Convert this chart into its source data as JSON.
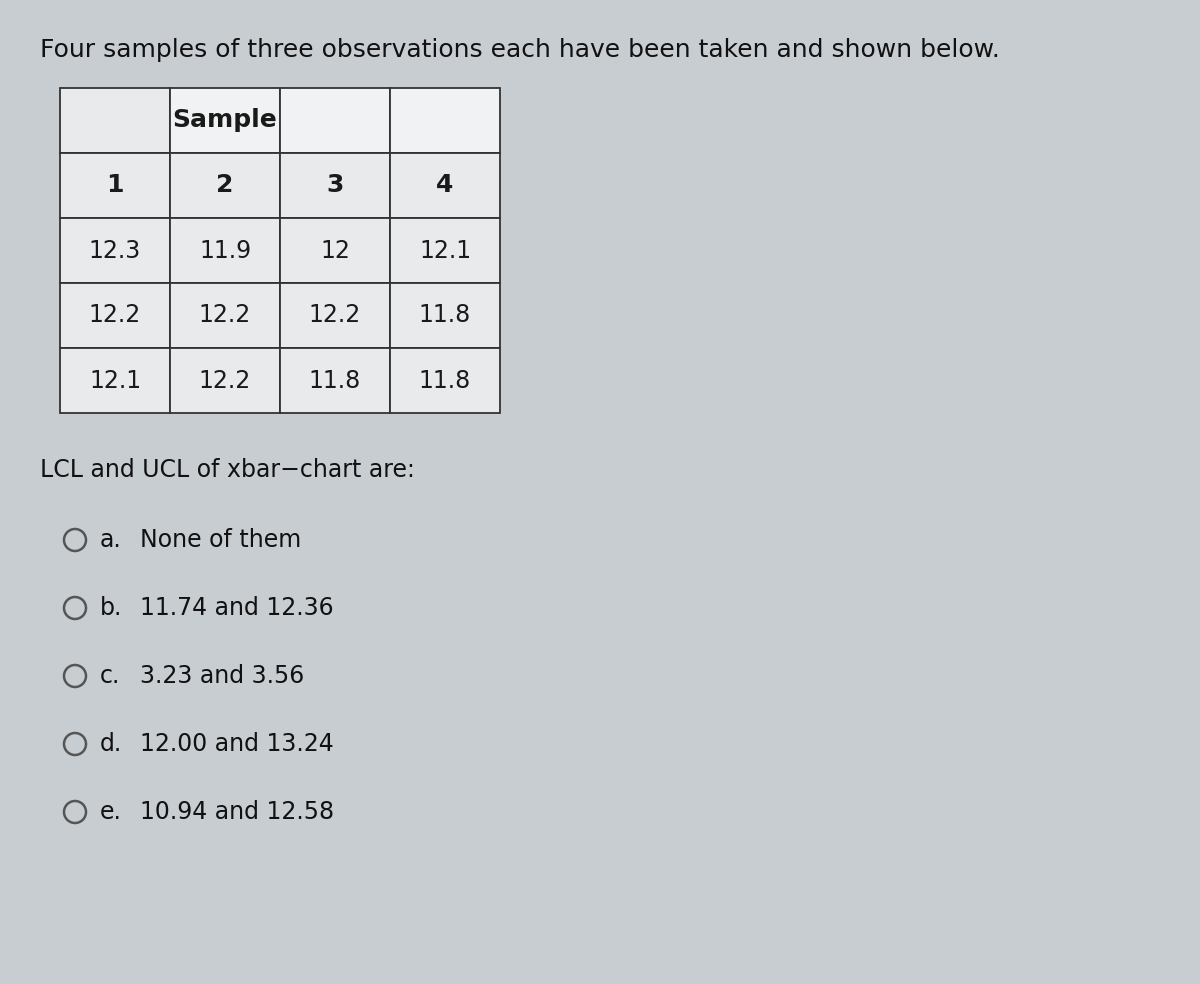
{
  "title": "Four samples of three observations each have been taken and shown below.",
  "background_color": "#c8cdd2",
  "cell_bg": "#e8eaec",
  "cell_bg_white": "#f0f2f3",
  "border_color": "#333333",
  "header_bold": "Sample",
  "col_headers": [
    "1",
    "2",
    "3",
    "4"
  ],
  "rows": [
    [
      "12.3",
      "11.9",
      "12",
      "12.1"
    ],
    [
      "12.2",
      "12.2",
      "12.2",
      "11.8"
    ],
    [
      "12.1",
      "12.2",
      "11.8",
      "11.8"
    ]
  ],
  "question": "LCL and UCL of xbar−chart are:",
  "options": [
    [
      "a.",
      "None of them"
    ],
    [
      "b.",
      "11.74 and 12.36"
    ],
    [
      "c.",
      "3.23 and 3.56"
    ],
    [
      "d.",
      "12.00 and 13.24"
    ],
    [
      "e.",
      "10.94 and 12.58"
    ]
  ],
  "title_fontsize": 18,
  "question_fontsize": 17,
  "option_fontsize": 17,
  "table_fontsize": 17,
  "table_header_fontsize": 18
}
